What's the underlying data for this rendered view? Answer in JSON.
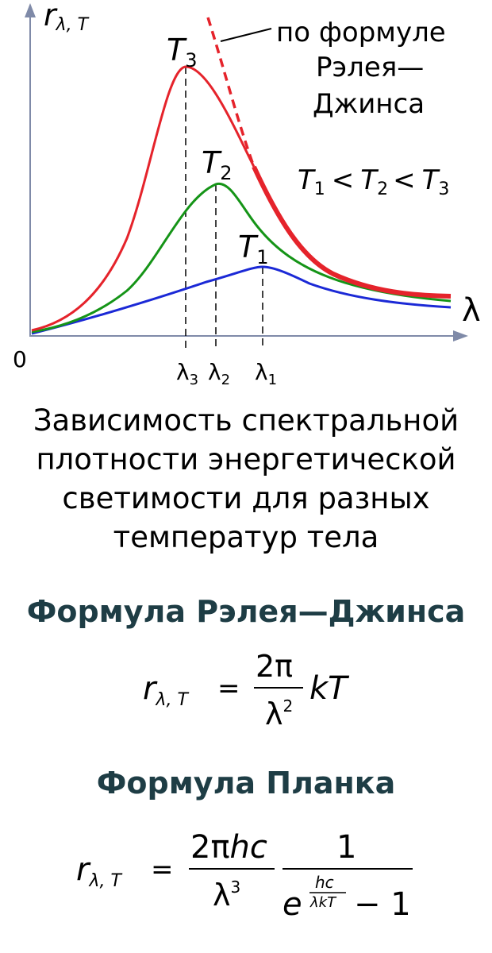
{
  "graph": {
    "axis_y_label": "r",
    "axis_y_sub": "λ, T",
    "axis_x_label": "λ",
    "origin": "0",
    "rj_label": [
      "по формуле",
      "Рэлея—",
      "Джинса"
    ],
    "inequality": {
      "t1": "T",
      "s1": "1",
      "lt1": "<",
      "t2": "T",
      "s2": "2",
      "lt2": "<",
      "t3": "T",
      "s3": "3"
    },
    "curves": [
      {
        "name": "T",
        "sub": "3",
        "color": "#e5232b"
      },
      {
        "name": "T",
        "sub": "2",
        "color": "#159417"
      },
      {
        "name": "T",
        "sub": "1",
        "color": "#1b29d6"
      }
    ],
    "rj_color": "#e5232b",
    "ticks": [
      {
        "sym": "λ",
        "sub": "3"
      },
      {
        "sym": "λ",
        "sub": "2"
      },
      {
        "sym": "λ",
        "sub": "1"
      }
    ]
  },
  "caption": [
    "Зависимость спектральной",
    "плотности энергетической",
    "светимости для разных",
    "температур тела"
  ],
  "rayleigh_jeans": {
    "heading": "Формула Рэлея—Джинса",
    "lhs": "r",
    "lhs_sub": "λ, T",
    "eq": "=",
    "num": "2π",
    "den": "λ",
    "den_sup": "2",
    "tail": "kT"
  },
  "planck": {
    "heading": "Формула Планка",
    "lhs": "r",
    "lhs_sub": "λ, T",
    "eq": "=",
    "num_a": "2π",
    "num_b": "hc",
    "den": "λ",
    "den_sup": "3",
    "one": "1",
    "e": "e",
    "exp_num": "hc",
    "exp_den": "λkT",
    "minus_one": "− 1"
  }
}
